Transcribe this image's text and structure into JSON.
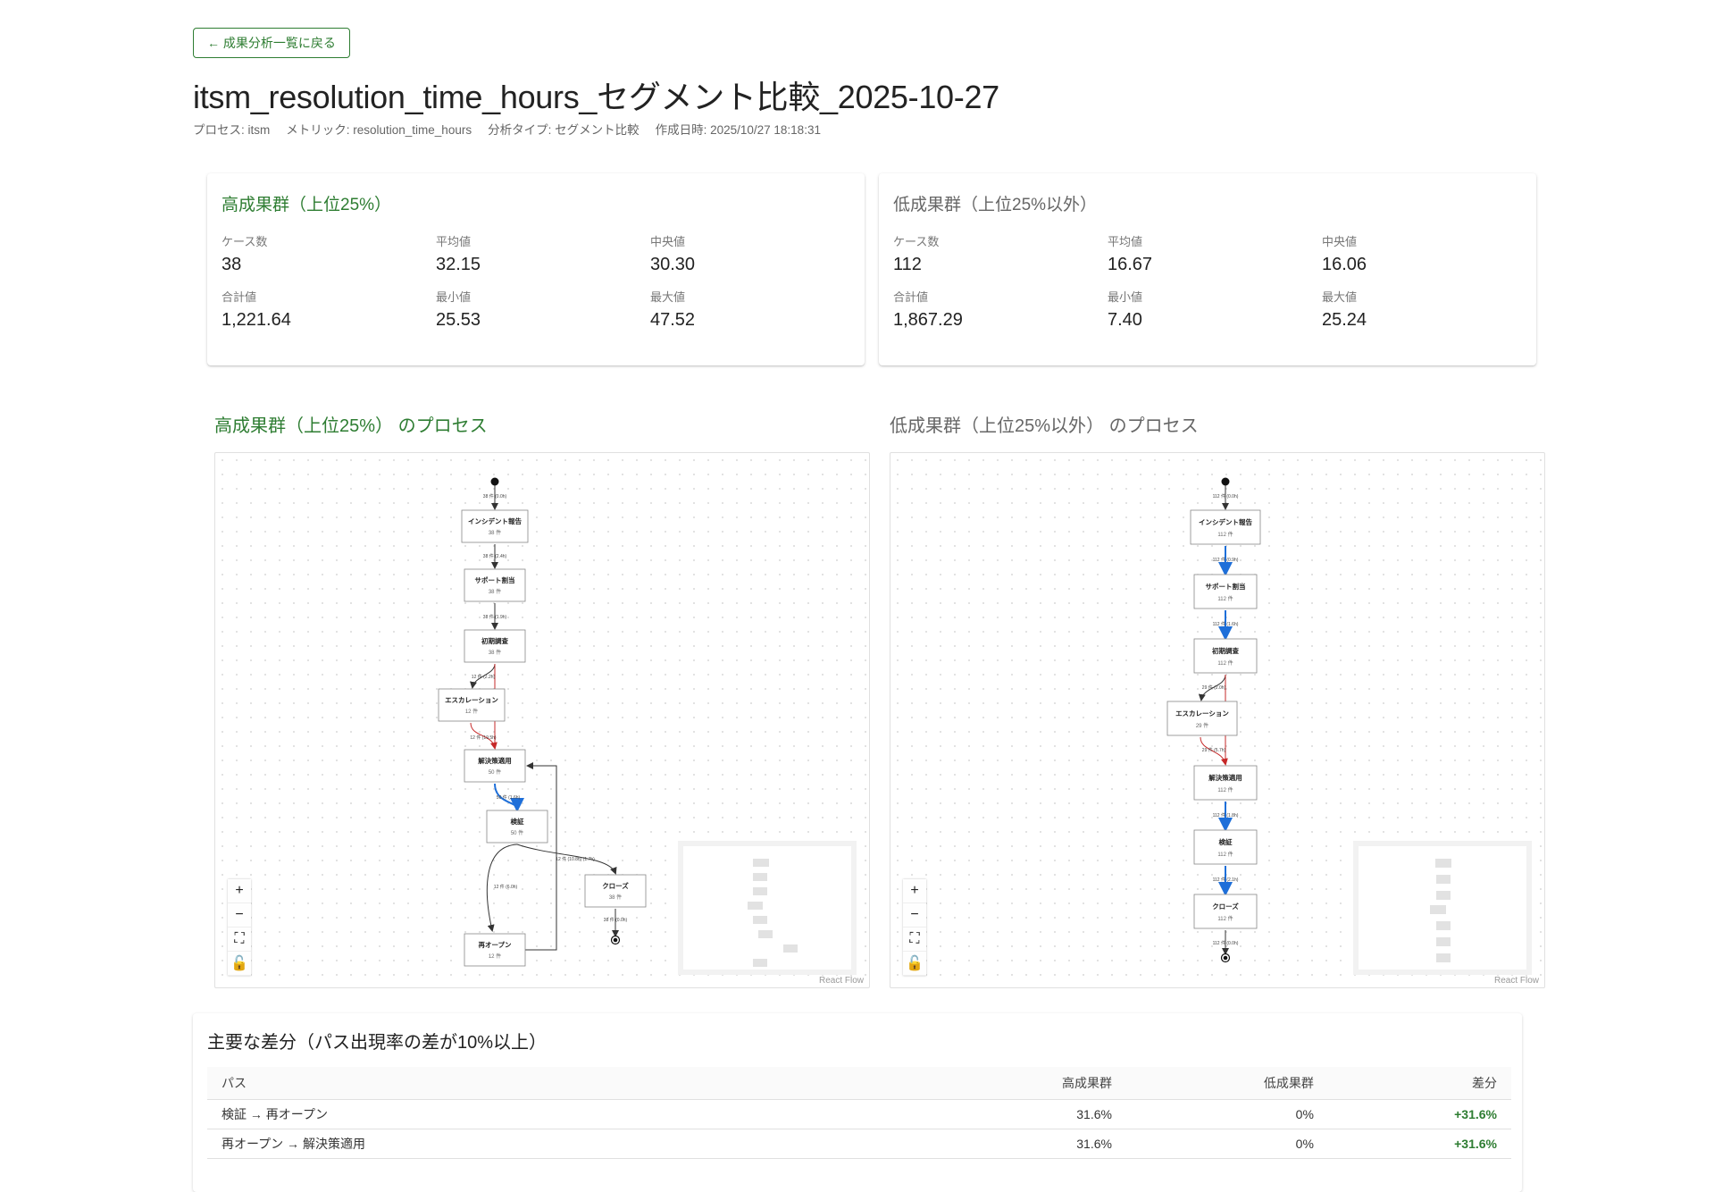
{
  "back_button": "← 成果分析一覧に戻る",
  "title": "itsm_resolution_time_hours_セグメント比較_2025-10-27",
  "meta": {
    "process": "プロセス: itsm",
    "metric": "メトリック: resolution_time_hours",
    "analysis_type": "分析タイプ: セグメント比較",
    "created": "作成日時: 2025/10/27 18:18:31"
  },
  "high_group": {
    "title": "高成果群（上位25%）",
    "stats": [
      {
        "label": "ケース数",
        "value": "38"
      },
      {
        "label": "平均値",
        "value": "32.15"
      },
      {
        "label": "中央値",
        "value": "30.30"
      },
      {
        "label": "合計値",
        "value": "1,221.64"
      },
      {
        "label": "最小値",
        "value": "25.53"
      },
      {
        "label": "最大値",
        "value": "47.52"
      }
    ],
    "process_title": "高成果群（上位25%） のプロセス",
    "nodes": [
      {
        "name": "インシデント報告",
        "count": "38 件"
      },
      {
        "name": "サポート割当",
        "count": "38 件"
      },
      {
        "name": "初期調査",
        "count": "38 件"
      },
      {
        "name": "エスカレーション",
        "count": "12 件"
      },
      {
        "name": "解決策適用",
        "count": "50 件"
      },
      {
        "name": "検証",
        "count": "50 件"
      },
      {
        "name": "クローズ",
        "count": "38 件"
      },
      {
        "name": "再オープン",
        "count": "12 件"
      }
    ],
    "edges": [
      "38 件 (0.0h)",
      "38 件 (2.4h)",
      "38 件 (1.9h)",
      "12 件 (2.2h)",
      "12 件 (19.5h)",
      "50 件 (1.6h)",
      "12 件 (6.0h)",
      "12 件 (10.8h) (1.7h)",
      "38 件 (0.0h)"
    ]
  },
  "low_group": {
    "title": "低成果群（上位25%以外）",
    "stats": [
      {
        "label": "ケース数",
        "value": "112"
      },
      {
        "label": "平均値",
        "value": "16.67"
      },
      {
        "label": "中央値",
        "value": "16.06"
      },
      {
        "label": "合計値",
        "value": "1,867.29"
      },
      {
        "label": "最小値",
        "value": "7.40"
      },
      {
        "label": "最大値",
        "value": "25.24"
      }
    ],
    "process_title": "低成果群（上位25%以外） のプロセス",
    "nodes": [
      {
        "name": "インシデント報告",
        "count": "112 件"
      },
      {
        "name": "サポート割当",
        "count": "112 件"
      },
      {
        "name": "初期調査",
        "count": "112 件"
      },
      {
        "name": "エスカレーション",
        "count": "29 件"
      },
      {
        "name": "解決策適用",
        "count": "112 件"
      },
      {
        "name": "検証",
        "count": "112 件"
      },
      {
        "name": "クローズ",
        "count": "112 件"
      }
    ],
    "edges": [
      "112 件 (0.0h)",
      "112 件 (0.9h)",
      "112 件 (1.6h)",
      "29 件 (2.0h)",
      "29 件 (5.7h)",
      "112 件 (1.8h)",
      "112 件 (2.1h)",
      "112 件 (0.0h)"
    ]
  },
  "flow_controls": {
    "zoom_in": "+",
    "zoom_out": "−",
    "fit": "⛶",
    "lock": "🔓"
  },
  "attribution": "React Flow",
  "diff": {
    "title": "主要な差分（パス出現率の差が10%以上）",
    "columns": [
      "パス",
      "高成果群",
      "低成果群",
      "差分"
    ],
    "rows": [
      {
        "path": "検証 → 再オープン",
        "high": "31.6%",
        "low": "0%",
        "diff": "+31.6%"
      },
      {
        "path": "再オープン → 解決策適用",
        "high": "31.6%",
        "low": "0%",
        "diff": "+31.6%"
      }
    ]
  },
  "colors": {
    "accent_green": "#2e7d32",
    "edge_red": "#c62828",
    "edge_blue": "#1e6fd9"
  }
}
